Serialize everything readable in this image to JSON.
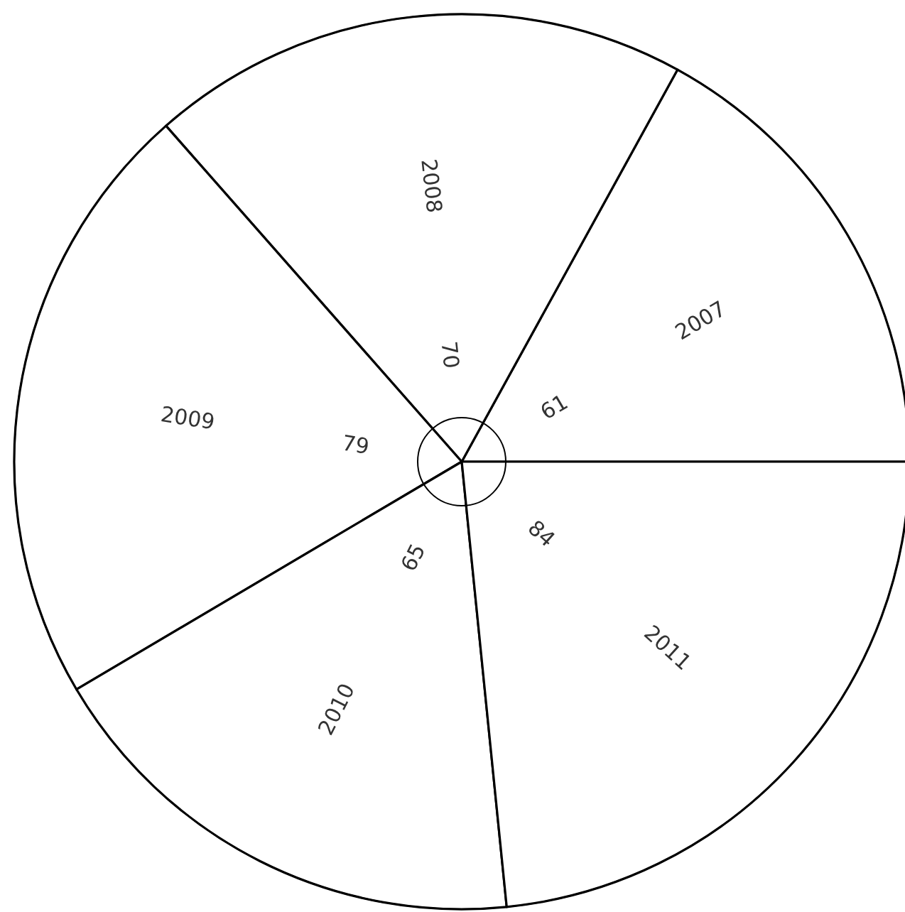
{
  "chart_data": {
    "type": "pie",
    "categories": [
      "2007",
      "2008",
      "2009",
      "2010",
      "2011"
    ],
    "values": [
      61,
      70,
      79,
      65,
      84
    ],
    "colors": [
      "#ffffff",
      "#ffffff",
      "#ffffff",
      "#ffffff",
      "#ffffff"
    ],
    "data_labels": true
  }
}
